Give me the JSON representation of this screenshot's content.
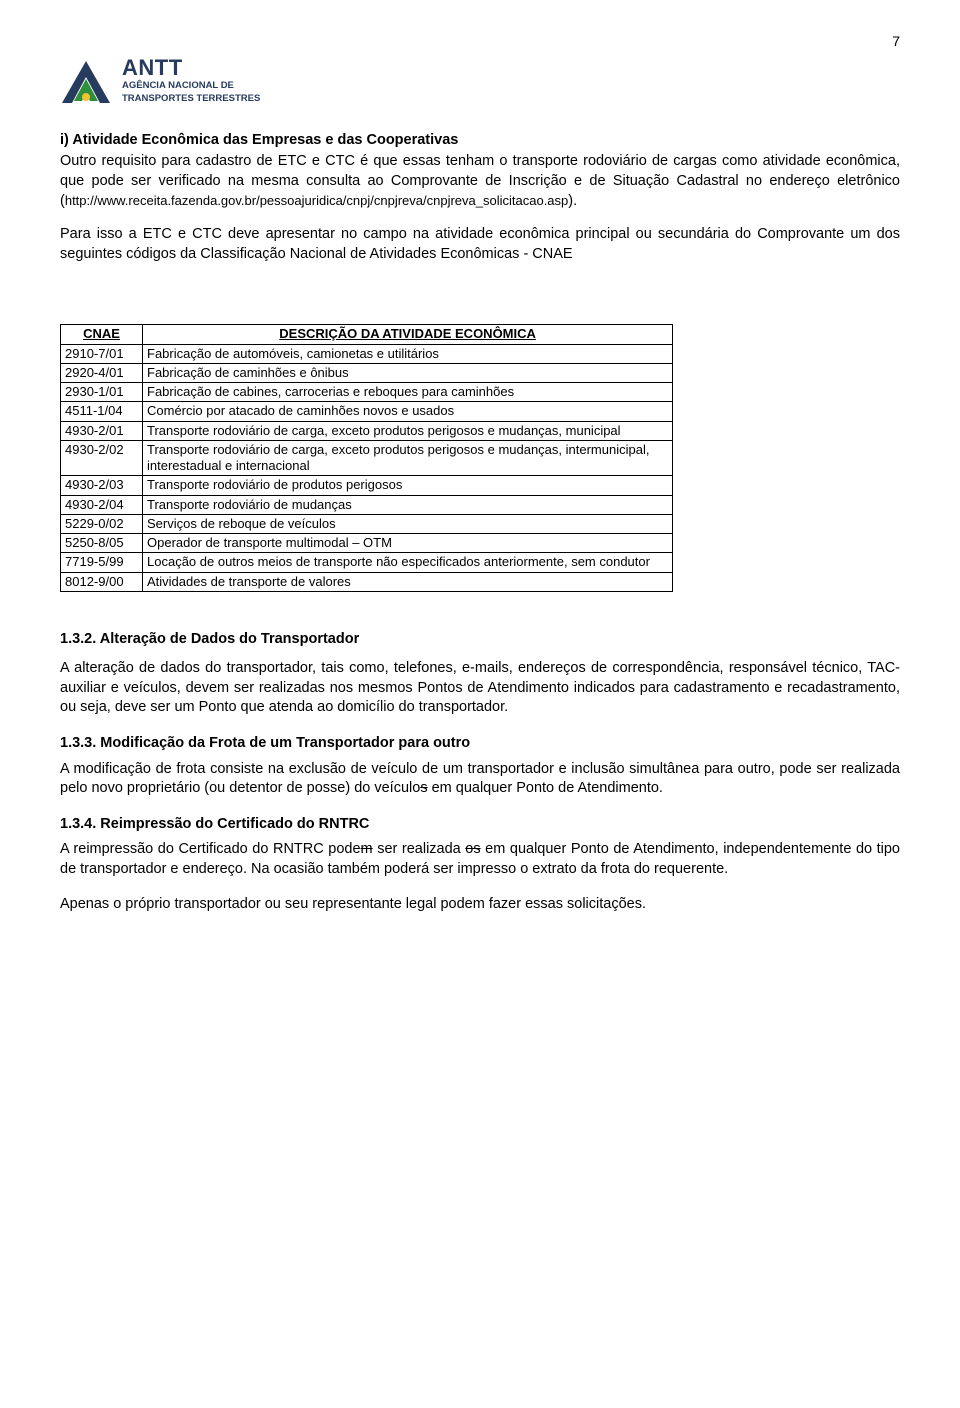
{
  "page_number": "7",
  "logo": {
    "brand": "ANTT",
    "subtitle_line1": "AGÊNCIA NACIONAL DE",
    "subtitle_line2": "TRANSPORTES TERRESTRES",
    "colors": {
      "blue": "#273b5f",
      "green": "#2f8f3a",
      "yellow": "#f2c233"
    }
  },
  "section_i": {
    "title": "i) Atividade Econômica das Empresas e das Cooperativas",
    "p1_a": "Outro requisito para cadastro de ETC e CTC é que essas tenham o transporte rodoviário de cargas como atividade econômica, que pode ser verificado na mesma consulta ao Comprovante de Inscrição e de Situação Cadastral no endereço eletrônico (",
    "p1_url": "http://www.receita.fazenda.gov.br/pessoajuridica/cnpj/cnpjreva/cnpjreva_solicitacao.asp",
    "p1_b": ").",
    "p2": "Para isso a ETC e CTC deve apresentar no campo na atividade econômica principal ou secundária do Comprovante um dos seguintes códigos da Classificação Nacional de Atividades Econômicas - CNAE"
  },
  "cnae_table": {
    "header_code": "CNAE",
    "header_desc": "DESCRIÇÃO DA ATIVIDADE ECONÔMICA",
    "rows": [
      {
        "code": "2910-7/01",
        "desc": "Fabricação de automóveis, camionetas e utilitários"
      },
      {
        "code": "2920-4/01",
        "desc": "Fabricação de caminhões e ônibus"
      },
      {
        "code": "2930-1/01",
        "desc": "Fabricação de cabines, carrocerias e reboques para caminhões"
      },
      {
        "code": "4511-1/04",
        "desc": "Comércio por atacado de caminhões novos e usados"
      },
      {
        "code": "4930-2/01",
        "desc": "Transporte rodoviário de carga, exceto produtos perigosos e mudanças, municipal"
      },
      {
        "code": "4930-2/02",
        "desc": "Transporte rodoviário de carga, exceto produtos perigosos e mudanças, intermunicipal, interestadual e internacional"
      },
      {
        "code": "4930-2/03",
        "desc": "Transporte rodoviário de produtos perigosos"
      },
      {
        "code": "4930-2/04",
        "desc": "Transporte rodoviário de mudanças"
      },
      {
        "code": "5229-0/02",
        "desc": "Serviços de reboque de veículos"
      },
      {
        "code": "5250-8/05",
        "desc": "Operador de transporte multimodal – OTM"
      },
      {
        "code": "7719-5/99",
        "desc": "Locação de outros meios de transporte não especificados anteriormente, sem condutor"
      },
      {
        "code": "8012-9/00",
        "desc": "Atividades de transporte de valores"
      }
    ]
  },
  "section_132": {
    "title": "1.3.2. Alteração de Dados do Transportador",
    "p": "A alteração de dados do transportador, tais como, telefones, e-mails, endereços de correspondência, responsável técnico, TAC-auxiliar e veículos, devem ser realizadas nos mesmos Pontos de Atendimento indicados para cadastramento e recadastramento, ou seja, deve ser um Ponto que atenda ao domicílio do transportador."
  },
  "section_133": {
    "title": "1.3.3. Modificação da Frota de um Transportador para outro",
    "p_a": "A modificação de frota consiste na exclusão de veículo de um transportador e inclusão simultânea para outro, pode ser realizada pelo novo proprietário (ou detentor de posse) do veículo",
    "p_strike1": "s",
    "p_b": " em qualquer Ponto de Atendimento."
  },
  "section_134": {
    "title": "1.3.4. Reimpressão do Certificado do RNTRC",
    "p_a": "A reimpressão do Certificado do RNTRC pode",
    "p_strike1": "m",
    "p_b": " ser realizada ",
    "p_strike2": "os",
    "p_c": " em qualquer Ponto de Atendimento, independentemente do tipo de transportador e endereço. Na ocasião também poderá ser impresso o extrato da frota do requerente."
  },
  "footer_p": "Apenas o próprio transportador ou seu representante legal podem fazer essas solicitações."
}
